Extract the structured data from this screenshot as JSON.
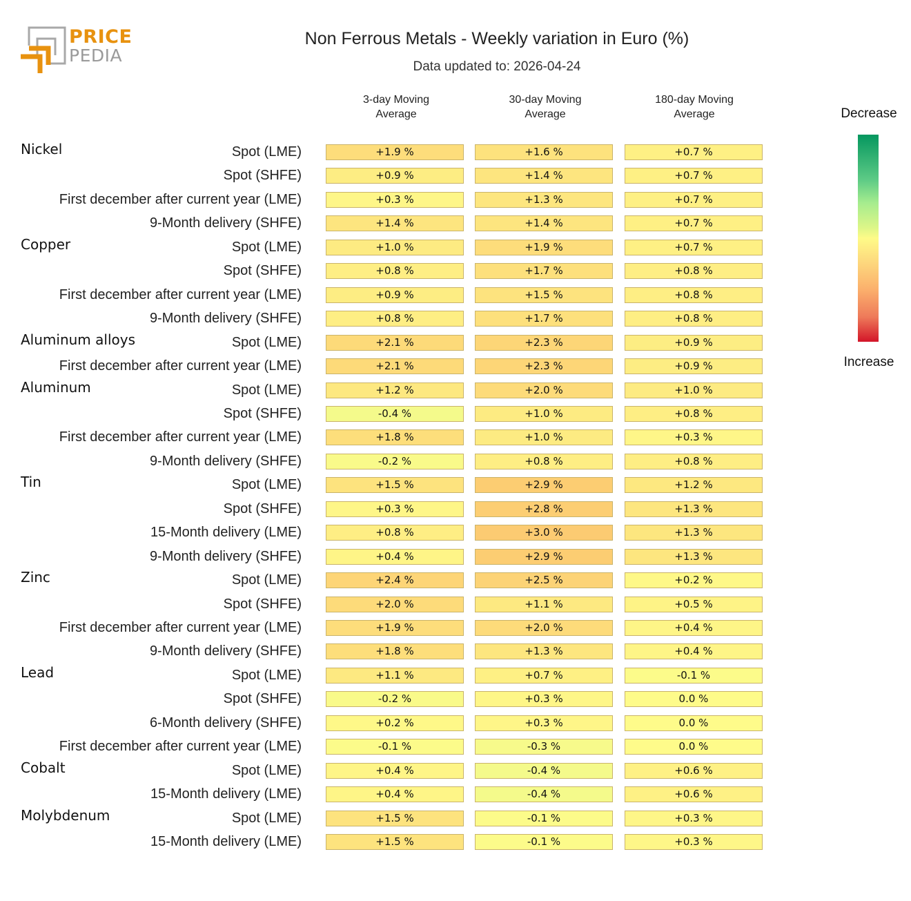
{
  "logo": {
    "line1": "PRICE",
    "line2": "PEDIA",
    "brand_color": "#E8920F",
    "gray_color": "#9A9A9A"
  },
  "header": {
    "title": "Non Ferrous Metals - Weekly variation in Euro (%)",
    "subtitle": "Data updated to: 2026-04-24"
  },
  "legend": {
    "top_label": "Decrease",
    "bottom_label": "Increase",
    "colors": [
      "#05975F",
      "#FEFB88",
      "#D31529"
    ]
  },
  "chart_data": {
    "type": "heatmap",
    "title": "Non Ferrous Metals - Weekly variation in Euro (%)",
    "subtitle": "Data updated to: 2026-04-24",
    "columns": [
      "3-day Moving Average",
      "30-day Moving Average",
      "180-day Moving Average"
    ],
    "column_lines": [
      [
        "3-day Moving",
        "Average"
      ],
      [
        "30-day Moving",
        "Average"
      ],
      [
        "180-day Moving",
        "Average"
      ]
    ],
    "unit": "%",
    "groups": [
      {
        "name": "Nickel",
        "rows": [
          {
            "label": "Spot (LME)",
            "values": [
              1.9,
              1.6,
              0.7
            ],
            "display": [
              "+1.9 %",
              "+1.6 %",
              "+0.7 %"
            ]
          },
          {
            "label": "Spot (SHFE)",
            "values": [
              0.9,
              1.4,
              0.7
            ],
            "display": [
              "+0.9 %",
              "+1.4 %",
              "+0.7 %"
            ]
          },
          {
            "label": "First december after current year (LME)",
            "values": [
              0.3,
              1.3,
              0.7
            ],
            "display": [
              "+0.3 %",
              "+1.3 %",
              "+0.7 %"
            ]
          },
          {
            "label": "9-Month delivery (SHFE)",
            "values": [
              1.4,
              1.4,
              0.7
            ],
            "display": [
              "+1.4 %",
              "+1.4 %",
              "+0.7 %"
            ]
          }
        ]
      },
      {
        "name": "Copper",
        "rows": [
          {
            "label": "Spot (LME)",
            "values": [
              1.0,
              1.9,
              0.7
            ],
            "display": [
              "+1.0 %",
              "+1.9 %",
              "+0.7 %"
            ]
          },
          {
            "label": "Spot (SHFE)",
            "values": [
              0.8,
              1.7,
              0.8
            ],
            "display": [
              "+0.8 %",
              "+1.7 %",
              "+0.8 %"
            ]
          },
          {
            "label": "First december after current year (LME)",
            "values": [
              0.9,
              1.5,
              0.8
            ],
            "display": [
              "+0.9 %",
              "+1.5 %",
              "+0.8 %"
            ]
          },
          {
            "label": "9-Month delivery (SHFE)",
            "values": [
              0.8,
              1.7,
              0.8
            ],
            "display": [
              "+0.8 %",
              "+1.7 %",
              "+0.8 %"
            ]
          }
        ]
      },
      {
        "name": "Aluminum alloys",
        "rows": [
          {
            "label": "Spot (LME)",
            "values": [
              2.1,
              2.3,
              0.9
            ],
            "display": [
              "+2.1 %",
              "+2.3 %",
              "+0.9 %"
            ]
          },
          {
            "label": "First december after current year (LME)",
            "values": [
              2.1,
              2.3,
              0.9
            ],
            "display": [
              "+2.1 %",
              "+2.3 %",
              "+0.9 %"
            ]
          }
        ]
      },
      {
        "name": "Aluminum",
        "rows": [
          {
            "label": "Spot (LME)",
            "values": [
              1.2,
              2.0,
              1.0
            ],
            "display": [
              "+1.2 %",
              "+2.0 %",
              "+1.0 %"
            ]
          },
          {
            "label": "Spot (SHFE)",
            "values": [
              -0.4,
              1.0,
              0.8
            ],
            "display": [
              "-0.4 %",
              "+1.0 %",
              "+0.8 %"
            ]
          },
          {
            "label": "First december after current year (LME)",
            "values": [
              1.8,
              1.0,
              0.3
            ],
            "display": [
              "+1.8 %",
              "+1.0 %",
              "+0.3 %"
            ]
          },
          {
            "label": "9-Month delivery (SHFE)",
            "values": [
              -0.2,
              0.8,
              0.8
            ],
            "display": [
              "-0.2 %",
              "+0.8 %",
              "+0.8 %"
            ]
          }
        ]
      },
      {
        "name": "Tin",
        "rows": [
          {
            "label": "Spot (LME)",
            "values": [
              1.5,
              2.9,
              1.2
            ],
            "display": [
              "+1.5 %",
              "+2.9 %",
              "+1.2 %"
            ]
          },
          {
            "label": "Spot (SHFE)",
            "values": [
              0.3,
              2.8,
              1.3
            ],
            "display": [
              "+0.3 %",
              "+2.8 %",
              "+1.3 %"
            ]
          },
          {
            "label": "15-Month delivery (LME)",
            "values": [
              0.8,
              3.0,
              1.3
            ],
            "display": [
              "+0.8 %",
              "+3.0 %",
              "+1.3 %"
            ]
          },
          {
            "label": "9-Month delivery (SHFE)",
            "values": [
              0.4,
              2.9,
              1.3
            ],
            "display": [
              "+0.4 %",
              "+2.9 %",
              "+1.3 %"
            ]
          }
        ]
      },
      {
        "name": "Zinc",
        "rows": [
          {
            "label": "Spot (LME)",
            "values": [
              2.4,
              2.5,
              0.2
            ],
            "display": [
              "+2.4 %",
              "+2.5 %",
              "+0.2 %"
            ]
          },
          {
            "label": "Spot (SHFE)",
            "values": [
              2.0,
              1.1,
              0.5
            ],
            "display": [
              "+2.0 %",
              "+1.1 %",
              "+0.5 %"
            ]
          },
          {
            "label": "First december after current year (LME)",
            "values": [
              1.9,
              2.0,
              0.4
            ],
            "display": [
              "+1.9 %",
              "+2.0 %",
              "+0.4 %"
            ]
          },
          {
            "label": "9-Month delivery (SHFE)",
            "values": [
              1.8,
              1.3,
              0.4
            ],
            "display": [
              "+1.8 %",
              "+1.3 %",
              "+0.4 %"
            ]
          }
        ]
      },
      {
        "name": "Lead",
        "rows": [
          {
            "label": "Spot (LME)",
            "values": [
              1.1,
              0.7,
              -0.1
            ],
            "display": [
              "+1.1 %",
              "+0.7 %",
              "-0.1 %"
            ]
          },
          {
            "label": "Spot (SHFE)",
            "values": [
              -0.2,
              0.3,
              0.0
            ],
            "display": [
              "-0.2 %",
              "+0.3 %",
              "0.0 %"
            ]
          },
          {
            "label": "6-Month delivery (SHFE)",
            "values": [
              0.2,
              0.3,
              0.0
            ],
            "display": [
              "+0.2 %",
              "+0.3 %",
              "0.0 %"
            ]
          },
          {
            "label": "First december after current year (LME)",
            "values": [
              -0.1,
              -0.3,
              0.0
            ],
            "display": [
              "-0.1 %",
              "-0.3 %",
              "0.0 %"
            ]
          }
        ]
      },
      {
        "name": "Cobalt",
        "rows": [
          {
            "label": "Spot (LME)",
            "values": [
              0.4,
              -0.4,
              0.6
            ],
            "display": [
              "+0.4 %",
              "-0.4 %",
              "+0.6 %"
            ]
          },
          {
            "label": "15-Month delivery (LME)",
            "values": [
              0.4,
              -0.4,
              0.6
            ],
            "display": [
              "+0.4 %",
              "-0.4 %",
              "+0.6 %"
            ]
          }
        ]
      },
      {
        "name": "Molybdenum",
        "rows": [
          {
            "label": "Spot (LME)",
            "values": [
              1.5,
              -0.1,
              0.3
            ],
            "display": [
              "+1.5 %",
              "-0.1 %",
              "+0.3 %"
            ]
          },
          {
            "label": "15-Month delivery (LME)",
            "values": [
              1.5,
              -0.1,
              0.3
            ],
            "display": [
              "+1.5 %",
              "-0.1 %",
              "+0.3 %"
            ]
          }
        ]
      }
    ],
    "color_scale": {
      "min": -10,
      "mid": 0,
      "max": 10,
      "low_color": "#05975F",
      "mid_color": "#FEFB88",
      "high_color": "#D31529"
    }
  }
}
